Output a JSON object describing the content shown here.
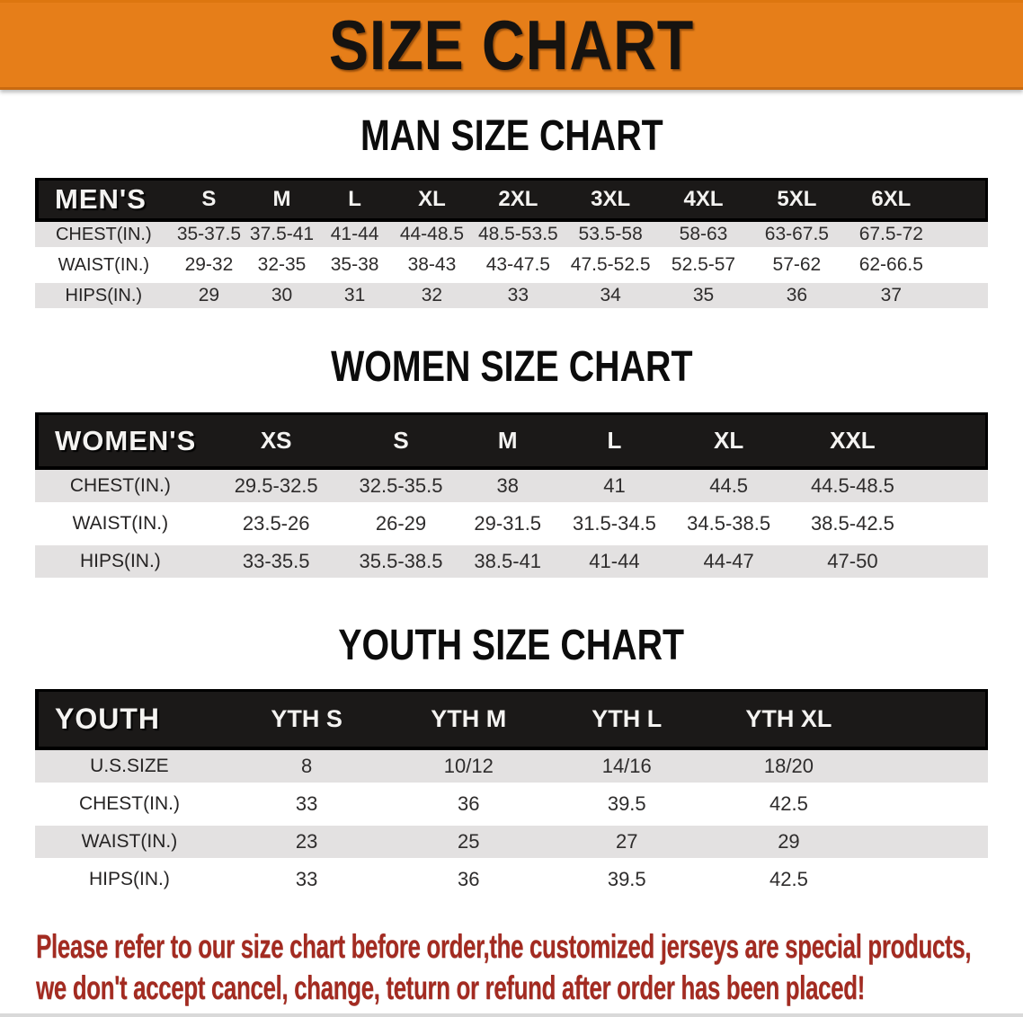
{
  "banner": {
    "title": "SIZE CHART",
    "bg_color": "#E67E19",
    "text_color": "#161310"
  },
  "headings": {
    "man": "MAN SIZE CHART",
    "women": "WOMEN SIZE CHART",
    "youth": "YOUTH SIZE CHART"
  },
  "colors": {
    "header_bar_bg": "#1b1918",
    "header_bar_text": "#f4f3f1",
    "row_stripe": "#E3E1E1",
    "disclaimer_red": "#A32B21"
  },
  "tables": {
    "men": {
      "label": "MEN'S",
      "columns": [
        "S",
        "M",
        "L",
        "XL",
        "2XL",
        "3XL",
        "4XL",
        "5XL",
        "6XL"
      ],
      "col_widths": [
        "14.4%",
        "7.7%",
        "7.6%",
        "7.7%",
        "8.5%",
        "9.6%",
        "9.8%",
        "9.7%",
        "9.9%",
        "9.9%",
        "5.2%"
      ],
      "rows": [
        {
          "label": "CHEST(IN.)",
          "values": [
            "35-37.5",
            "37.5-41",
            "41-44",
            "44-48.5",
            "48.5-53.5",
            "53.5-58",
            "58-63",
            "63-67.5",
            "67.5-72"
          ]
        },
        {
          "label": "WAIST(IN.)",
          "values": [
            "29-32",
            "32-35",
            "35-38",
            "38-43",
            "43-47.5",
            "47.5-52.5",
            "52.5-57",
            "57-62",
            "62-66.5"
          ]
        },
        {
          "label": "HIPS(IN.)",
          "values": [
            "29",
            "30",
            "31",
            "32",
            "33",
            "34",
            "35",
            "36",
            "37"
          ]
        }
      ]
    },
    "women": {
      "label": "WOMEN'S",
      "columns": [
        "XS",
        "S",
        "M",
        "L",
        "XL",
        "XXL"
      ],
      "col_widths": [
        "17.9%",
        "14.8%",
        "11.4%",
        "11.0%",
        "11.4%",
        "12.6%",
        "13.4%",
        "7.5%"
      ],
      "rows": [
        {
          "label": "CHEST(IN.)",
          "values": [
            "29.5-32.5",
            "32.5-35.5",
            "38",
            "41",
            "44.5",
            "44.5-48.5"
          ]
        },
        {
          "label": "WAIST(IN.)",
          "values": [
            "23.5-26",
            "26-29",
            "29-31.5",
            "31.5-34.5",
            "34.5-38.5",
            "38.5-42.5"
          ]
        },
        {
          "label": "HIPS(IN.)",
          "values": [
            "33-35.5",
            "35.5-38.5",
            "38.5-41",
            "41-44",
            "44-47",
            "47-50"
          ]
        }
      ]
    },
    "youth": {
      "label": "YOUTH",
      "columns": [
        "YTH S",
        "YTH M",
        "YTH L",
        "YTH XL"
      ],
      "col_widths": [
        "19.8%",
        "17.4%",
        "16.6%",
        "16.6%",
        "17.4%",
        "12.2%"
      ],
      "rows": [
        {
          "label": "U.S.SIZE",
          "values": [
            "8",
            "10/12",
            "14/16",
            "18/20"
          ]
        },
        {
          "label": "CHEST(IN.)",
          "values": [
            "33",
            "36",
            "39.5",
            "42.5"
          ]
        },
        {
          "label": "WAIST(IN.)",
          "values": [
            "23",
            "25",
            "27",
            "29"
          ]
        },
        {
          "label": "HIPS(IN.)",
          "values": [
            "33",
            "36",
            "39.5",
            "42.5"
          ]
        }
      ]
    }
  },
  "footer": {
    "line1": "Please refer to our size chart before order,the customized jerseys are special products,",
    "line2": "we don't accept cancel, change, teturn or refund after order has been placed!"
  }
}
